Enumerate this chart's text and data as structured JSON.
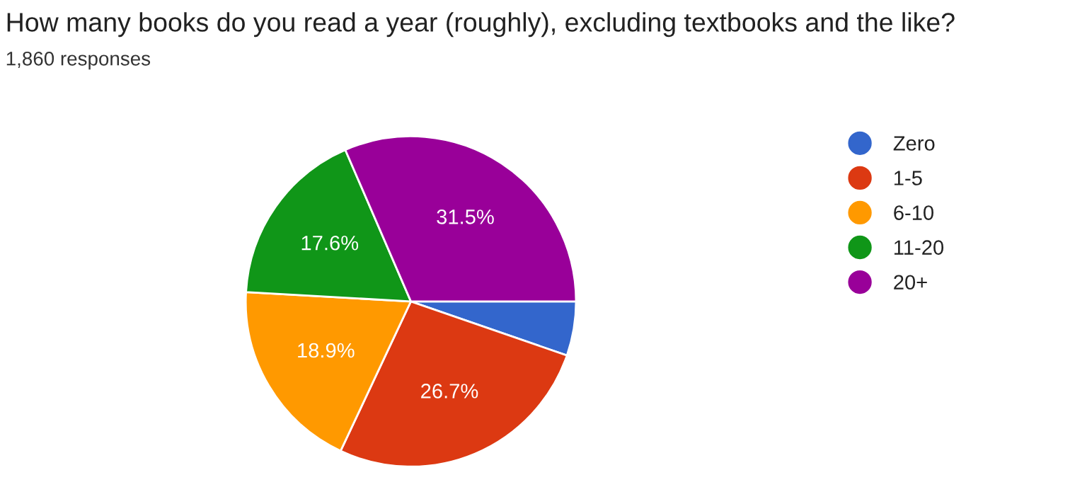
{
  "chart_data": {
    "type": "pie",
    "title": "How many books do you read a year (roughly), excluding textbooks and the like?",
    "subtitle": "1,860 responses",
    "categories": [
      "Zero",
      "1-5",
      "6-10",
      "11-20",
      "20+"
    ],
    "values": [
      5.3,
      26.7,
      18.9,
      17.6,
      31.5
    ],
    "value_labels": [
      null,
      "26.7%",
      "18.9%",
      "17.6%",
      "31.5%"
    ],
    "colors": [
      "#3366cc",
      "#dc3912",
      "#ff9900",
      "#109618",
      "#990099"
    ],
    "legend": "right"
  }
}
